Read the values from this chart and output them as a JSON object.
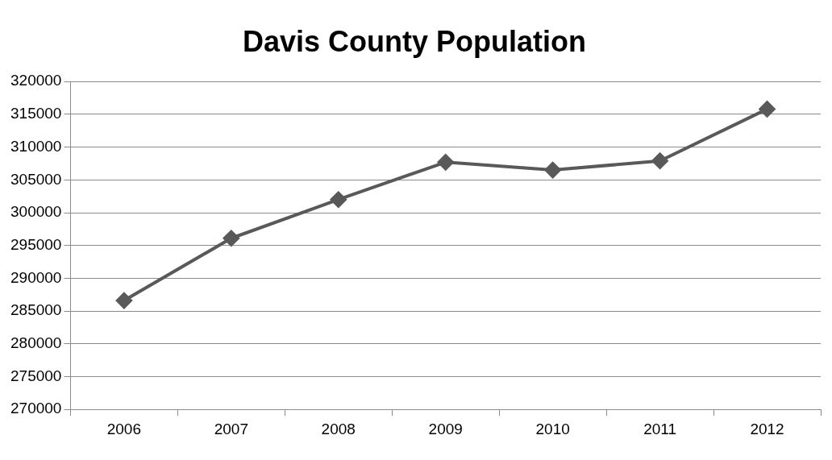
{
  "chart_data": {
    "type": "line",
    "title": "Davis County Population",
    "categories": [
      "2006",
      "2007",
      "2008",
      "2009",
      "2010",
      "2011",
      "2012"
    ],
    "series": [
      {
        "color": "#595959",
        "values": [
          286600,
          296100,
          302000,
          307700,
          306500,
          307900,
          315800
        ]
      }
    ],
    "ylim": [
      270000,
      320000
    ],
    "yticks": [
      270000,
      275000,
      280000,
      285000,
      290000,
      295000,
      300000,
      305000,
      310000,
      315000,
      320000
    ],
    "grid": "y",
    "legend": false,
    "marker": "diamond",
    "line_style": "solid"
  }
}
